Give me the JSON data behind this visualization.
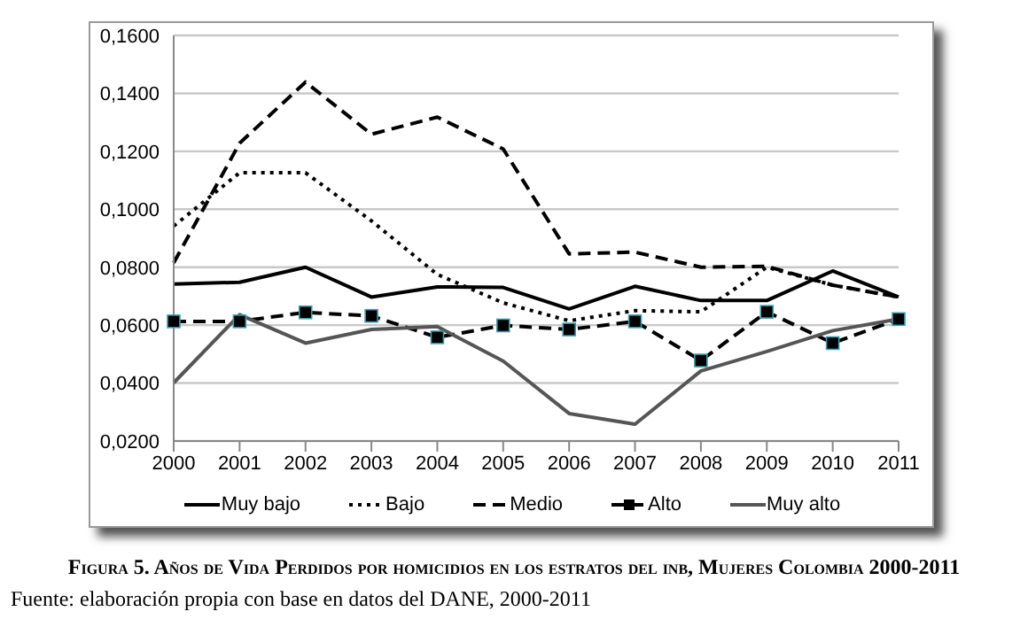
{
  "chart_data": {
    "type": "line",
    "title": "Figura 5. Años de Vida Perdidos por homicidios en los estratos del inb, Mujeres Colombia 2000-2011",
    "annotations": [
      "Fuente: elaboración propia con base en datos del DANE, 2000-2011"
    ],
    "categories": [
      "2000",
      "2001",
      "2002",
      "2003",
      "2004",
      "2005",
      "2006",
      "2007",
      "2008",
      "2009",
      "2010",
      "2011"
    ],
    "series": [
      {
        "name": "Muy bajo",
        "color": "#000000",
        "line_style": "solid",
        "marker": "none",
        "values": [
          0.0742,
          0.0748,
          0.08,
          0.0697,
          0.0732,
          0.073,
          0.0656,
          0.0734,
          0.0685,
          0.0685,
          0.0787,
          0.0697
        ]
      },
      {
        "name": "Bajo",
        "color": "#000000",
        "line_style": "dotted",
        "marker": "none",
        "values": [
          0.0942,
          0.1126,
          0.1126,
          0.096,
          0.0775,
          0.0677,
          0.0615,
          0.065,
          0.0646,
          0.08,
          0.0738,
          0.0697
        ]
      },
      {
        "name": "Medio",
        "color": "#000000",
        "line_style": "dashed",
        "marker": "none",
        "values": [
          0.0815,
          0.1228,
          0.1439,
          0.1259,
          0.1318,
          0.1208,
          0.0846,
          0.0852,
          0.08,
          0.0803,
          0.0738,
          0.0697
        ]
      },
      {
        "name": "Alto",
        "color": "#000000",
        "line_style": "dashed",
        "marker": "square",
        "values": [
          0.0613,
          0.0613,
          0.0644,
          0.0632,
          0.0558,
          0.0599,
          0.0585,
          0.0613,
          0.0478,
          0.0646,
          0.0538,
          0.0621
        ]
      },
      {
        "name": "Muy alto",
        "color": "#555555",
        "line_style": "solid",
        "marker": "none",
        "values": [
          0.0401,
          0.0636,
          0.0538,
          0.0585,
          0.0595,
          0.0476,
          0.0295,
          0.0258,
          0.0442,
          0.0509,
          0.0581,
          0.0621
        ]
      }
    ],
    "ylim": [
      0.02,
      0.16
    ],
    "yticks": [
      {
        "value": 0.02,
        "label": "0,0200"
      },
      {
        "value": 0.04,
        "label": "0,0400"
      },
      {
        "value": 0.06,
        "label": "0,0600"
      },
      {
        "value": 0.08,
        "label": "0,0800"
      },
      {
        "value": 0.1,
        "label": "0,1000"
      },
      {
        "value": 0.12,
        "label": "0,1200"
      },
      {
        "value": 0.14,
        "label": "0,1400"
      },
      {
        "value": 0.16,
        "label": "0,1600"
      }
    ],
    "grid": "y",
    "legend": "bottom"
  }
}
